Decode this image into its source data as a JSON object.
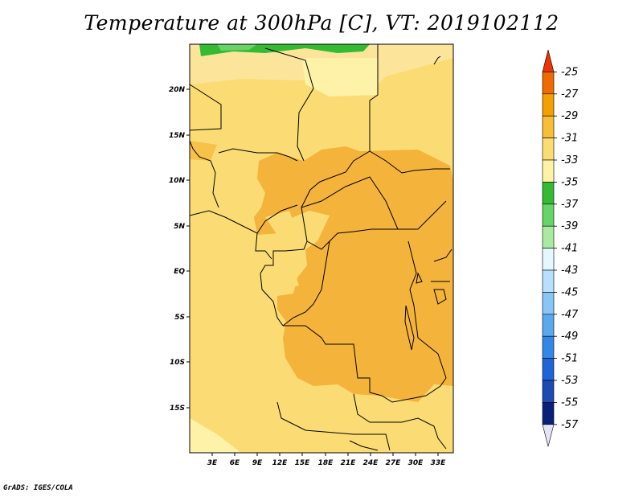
{
  "title": "Temperature at 300hPa [C], VT: 2019102112",
  "credit": "GrADS: IGES/COLA",
  "map": {
    "lat_labels": [
      "20N",
      "15N",
      "10N",
      "5N",
      "EQ",
      "5S",
      "10S",
      "15S"
    ],
    "lon_labels": [
      "3E",
      "6E",
      "9E",
      "12E",
      "15E",
      "18E",
      "21E",
      "24E",
      "27E",
      "30E",
      "33E"
    ]
  },
  "colorbar": {
    "labels": [
      "-25",
      "-27",
      "-29",
      "-31",
      "-33",
      "-35",
      "-37",
      "-39",
      "-41",
      "-43",
      "-45",
      "-47",
      "-49",
      "-51",
      "-53",
      "-55",
      "-57"
    ],
    "colors": [
      "#ee3300",
      "#f16a00",
      "#f4a000",
      "#f7be37",
      "#fbdc74",
      "#fdf2a8",
      "#33bb33",
      "#66d466",
      "#aaeaa0",
      "#e6f8ff",
      "#b7e0ff",
      "#88c6f7",
      "#5aa8ee",
      "#3388e6",
      "#1e66d8",
      "#1b4cb2",
      "#0a1f7a",
      "#e4e4f6"
    ]
  }
}
